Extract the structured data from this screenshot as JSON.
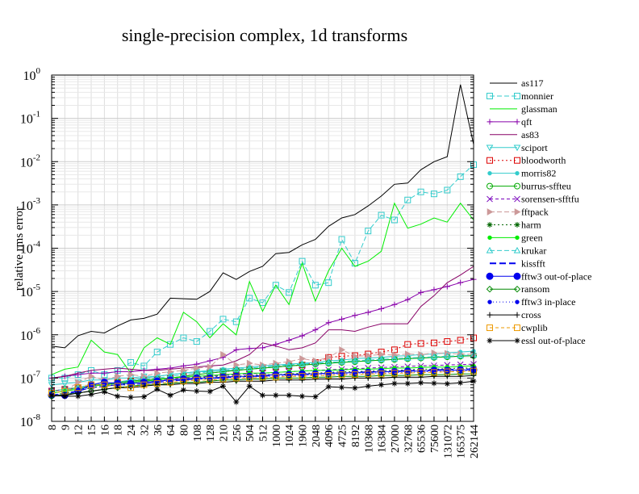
{
  "chart_data": {
    "type": "line",
    "title": "single-precision complex, 1d transforms",
    "xlabel": "",
    "ylabel": "relative rms error",
    "yscale": "log",
    "ylim": [
      1e-08,
      1
    ],
    "grid": true,
    "legend_position": "right",
    "y_ticks": [
      {
        "base": "10",
        "exp": "0"
      },
      {
        "base": "10",
        "exp": "-1"
      },
      {
        "base": "10",
        "exp": "-2"
      },
      {
        "base": "10",
        "exp": "-3"
      },
      {
        "base": "10",
        "exp": "-4"
      },
      {
        "base": "10",
        "exp": "-5"
      },
      {
        "base": "10",
        "exp": "-6"
      },
      {
        "base": "10",
        "exp": "-7"
      },
      {
        "base": "10",
        "exp": "-8"
      }
    ],
    "categories": [
      "8",
      "9",
      "12",
      "15",
      "16",
      "18",
      "24",
      "32",
      "36",
      "64",
      "80",
      "108",
      "128",
      "210",
      "256",
      "504",
      "512",
      "1000",
      "1024",
      "1960",
      "2048",
      "4096",
      "4725",
      "8192",
      "10368",
      "16384",
      "27000",
      "32768",
      "65536",
      "75600",
      "131072",
      "165375",
      "262144"
    ],
    "series": [
      {
        "name": "as117",
        "color": "#000000",
        "dash": "",
        "marker": "none",
        "values": [
          5.5e-07,
          5e-07,
          9.5e-07,
          1.2e-06,
          1.1e-06,
          1.6e-06,
          2.2e-06,
          2.4e-06,
          3e-06,
          7e-06,
          6.8e-06,
          6.6e-06,
          1e-05,
          2.7e-05,
          1.9e-05,
          2.9e-05,
          3.8e-05,
          7.5e-05,
          8e-05,
          0.00012,
          0.00016,
          0.00032,
          0.0005,
          0.0006,
          0.00095,
          0.0016,
          0.003,
          0.0032,
          0.0065,
          0.01,
          0.013,
          0.6,
          0.025
        ]
      },
      {
        "name": "monnier",
        "color": "#33cccc",
        "dash": "6,3",
        "marker": "square",
        "values": [
          1e-07,
          1e-07,
          1.2e-07,
          1.5e-07,
          1.2e-07,
          1.5e-07,
          2.3e-07,
          1.9e-07,
          4e-07,
          6e-07,
          8.5e-07,
          7e-07,
          1.2e-06,
          2.3e-06,
          2e-06,
          7e-06,
          5.5e-06,
          1.4e-05,
          9.5e-06,
          5e-05,
          1.4e-05,
          1.6e-05,
          0.00016,
          4.5e-05,
          0.00025,
          0.00058,
          0.00045,
          0.0013,
          0.002,
          0.0018,
          0.0022,
          0.0045,
          0.0085
        ]
      },
      {
        "name": "glassman",
        "color": "#00ee00",
        "dash": "",
        "marker": "none",
        "values": [
          1.2e-07,
          1.6e-07,
          1.8e-07,
          7.5e-07,
          4e-07,
          3.5e-07,
          1.3e-07,
          5e-07,
          8.5e-07,
          6e-07,
          3.3e-06,
          2e-06,
          8.5e-07,
          1.8e-06,
          1e-06,
          1.7e-05,
          3.5e-06,
          1.4e-05,
          5e-06,
          4.5e-05,
          6e-06,
          3e-05,
          0.0001,
          3.8e-05,
          5e-05,
          8.5e-05,
          0.0011,
          0.00029,
          0.00036,
          0.0005,
          0.0004,
          0.0011,
          0.00045
        ]
      },
      {
        "name": "qft",
        "color": "#8800aa",
        "dash": "",
        "marker": "plus",
        "values": [
          1e-07,
          1.1e-07,
          1.2e-07,
          1.3e-07,
          1.3e-07,
          1.4e-07,
          1.4e-07,
          1.5e-07,
          1.6e-07,
          1.7e-07,
          1.9e-07,
          2.1e-07,
          2.5e-07,
          3e-07,
          4.5e-07,
          4.8e-07,
          5e-07,
          6e-07,
          7.5e-07,
          9.5e-07,
          1.3e-06,
          1.9e-06,
          2.3e-06,
          2.8e-06,
          3.3e-06,
          4e-06,
          5e-06,
          6.5e-06,
          9.5e-06,
          1.1e-05,
          1.3e-05,
          1.6e-05,
          1.9e-05
        ]
      },
      {
        "name": "as83",
        "color": "#880066",
        "dash": "",
        "marker": "none",
        "values": [
          1e-07,
          1.1e-07,
          1.3e-07,
          1.5e-07,
          1.6e-07,
          1.7e-07,
          1.6e-07,
          1.5e-07,
          1.5e-07,
          1.6e-07,
          1.7e-07,
          1.8e-07,
          1.9e-07,
          2e-07,
          2.5e-07,
          3.5e-07,
          6.5e-07,
          5.5e-07,
          4.5e-07,
          5e-07,
          6.5e-07,
          1.3e-06,
          1.3e-06,
          1.2e-06,
          1.5e-06,
          1.8e-06,
          1.8e-06,
          1.8e-06,
          4.5e-06,
          8e-06,
          1.6e-05,
          2.4e-05,
          3.8e-05
        ]
      },
      {
        "name": "sciport",
        "color": "#33cccc",
        "dash": "",
        "marker": "tridown",
        "values": [
          7e-08,
          7.5e-08,
          8e-08,
          9e-08,
          9e-08,
          1e-07,
          1e-07,
          1.1e-07,
          1.1e-07,
          1.2e-07,
          1.3e-07,
          1.4e-07,
          1.4e-07,
          1.5e-07,
          1.5e-07,
          1.6e-07,
          1.7e-07,
          1.8e-07,
          1.9e-07,
          2e-07,
          2.1e-07,
          2.2e-07,
          2.3e-07,
          2.4e-07,
          2.5e-07,
          2.6e-07,
          2.7e-07,
          2.8e-07,
          2.9e-07,
          3e-07,
          3.1e-07,
          3.2e-07,
          3.3e-07
        ]
      },
      {
        "name": "bloodworth",
        "color": "#dd0000",
        "dash": "2,3",
        "marker": "square",
        "values": [
          5e-08,
          5.5e-08,
          6e-08,
          7e-08,
          7e-08,
          8e-08,
          8.5e-08,
          9e-08,
          9.5e-08,
          1e-07,
          1.1e-07,
          1.2e-07,
          1.3e-07,
          1.4e-07,
          1.5e-07,
          1.6e-07,
          1.7e-07,
          1.8e-07,
          1.9e-07,
          2e-07,
          2.3e-07,
          3e-07,
          3.2e-07,
          3.3e-07,
          3.6e-07,
          4e-07,
          4.5e-07,
          6e-07,
          6.3e-07,
          6.5e-07,
          7e-07,
          7.5e-07,
          8.5e-07
        ]
      },
      {
        "name": "morris82",
        "color": "#33cccc",
        "dash": "",
        "marker": "dot",
        "values": [
          4.5e-08,
          5e-08,
          6e-08,
          6.5e-08,
          7e-08,
          8e-08,
          9e-08,
          1e-07,
          1.1e-07,
          1.2e-07,
          1.3e-07,
          1.4e-07,
          1.5e-07,
          1.6e-07,
          1.7e-07,
          1.8e-07,
          1.9e-07,
          2e-07,
          2.1e-07,
          2.2e-07,
          2.3e-07,
          2.5e-07,
          2.6e-07,
          2.8e-07,
          2.9e-07,
          3e-07,
          3.2e-07,
          3.3e-07,
          3.5e-07,
          3.6e-07,
          3.8e-07,
          4e-07,
          4.2e-07
        ]
      },
      {
        "name": "burrus-sffteu",
        "color": "#00aa00",
        "dash": "",
        "marker": "circle",
        "values": [
          5e-08,
          5.5e-08,
          6e-08,
          7e-08,
          7e-08,
          8e-08,
          8.5e-08,
          9e-08,
          9.5e-08,
          1e-07,
          1.1e-07,
          1.2e-07,
          1.3e-07,
          1.4e-07,
          1.5e-07,
          1.6e-07,
          1.7e-07,
          1.8e-07,
          1.9e-07,
          2e-07,
          2.1e-07,
          2.2e-07,
          2.3e-07,
          2.4e-07,
          2.5e-07,
          2.6e-07,
          2.7e-07,
          2.8e-07,
          2.9e-07,
          3e-07,
          3.1e-07,
          3.2e-07,
          3.3e-07
        ]
      },
      {
        "name": "sorensen-sfftfu",
        "color": "#7700bb",
        "dash": "4,3",
        "marker": "x",
        "values": [
          5e-08,
          5.5e-08,
          6e-08,
          6.5e-08,
          7e-08,
          7.5e-08,
          8e-08,
          8.5e-08,
          9e-08,
          9.5e-08,
          1e-07,
          1.05e-07,
          1.1e-07,
          1.15e-07,
          1.2e-07,
          1.25e-07,
          1.3e-07,
          1.35e-07,
          1.4e-07,
          1.45e-07,
          1.5e-07,
          1.55e-07,
          1.6e-07,
          1.65e-07,
          1.7e-07,
          1.75e-07,
          1.8e-07,
          1.85e-07,
          1.9e-07,
          1.95e-07,
          2e-07,
          2.05e-07,
          2.1e-07
        ]
      },
      {
        "name": "fftpack",
        "color": "#cc9999",
        "dash": "6,3",
        "marker": "triright",
        "values": [
          4.5e-08,
          5e-08,
          8e-08,
          1.1e-07,
          9e-08,
          1.1e-07,
          1.2e-07,
          1.1e-07,
          1.3e-07,
          1.4e-07,
          1.5e-07,
          1.7e-07,
          1.8e-07,
          3.5e-07,
          2e-07,
          2.2e-07,
          2e-07,
          2.2e-07,
          2.4e-07,
          2.8e-07,
          2.5e-07,
          3e-07,
          4.5e-07,
          3.2e-07,
          3.3e-07,
          3.5e-07,
          3.4e-07,
          3.6e-07,
          3.5e-07,
          3.8e-07,
          3.7e-07,
          3.6e-07,
          3.5e-07
        ]
      },
      {
        "name": "harm",
        "color": "#006600",
        "dash": "2,3",
        "marker": "asterisk",
        "values": [
          4e-08,
          4.5e-08,
          5e-08,
          6e-08,
          6.5e-08,
          7e-08,
          7.5e-08,
          8e-08,
          8.5e-08,
          9e-08,
          9.5e-08,
          1e-07,
          1.05e-07,
          1.1e-07,
          1.1e-07,
          1.15e-07,
          1.2e-07,
          1.2e-07,
          1.25e-07,
          1.3e-07,
          1.3e-07,
          1.35e-07,
          1.4e-07,
          1.4e-07,
          1.45e-07,
          1.5e-07,
          1.5e-07,
          1.55e-07,
          1.6e-07,
          1.6e-07,
          1.65e-07,
          1.7e-07,
          1.7e-07
        ]
      },
      {
        "name": "green",
        "color": "#00ee00",
        "dash": "",
        "marker": "dot",
        "values": [
          4.5e-08,
          5e-08,
          5.5e-08,
          6.5e-08,
          7e-08,
          7.5e-08,
          8e-08,
          8.5e-08,
          9e-08,
          1e-07,
          1.05e-07,
          1.1e-07,
          1.15e-07,
          1.2e-07,
          1.25e-07,
          1.3e-07,
          1.3e-07,
          1.35e-07,
          1.4e-07,
          1.45e-07,
          1.5e-07,
          1.5e-07,
          1.55e-07,
          1.6e-07,
          1.6e-07,
          1.65e-07,
          1.7e-07,
          1.7e-07,
          1.75e-07,
          1.8e-07,
          1.8e-07,
          1.85e-07,
          1.9e-07
        ]
      },
      {
        "name": "krukar",
        "color": "#33cccc",
        "dash": "6,3",
        "marker": "triup",
        "values": [
          5e-08,
          5.5e-08,
          6e-08,
          7e-08,
          7.5e-08,
          8e-08,
          9e-08,
          9.5e-08,
          1e-07,
          1.1e-07,
          1.2e-07,
          1.3e-07,
          1.4e-07,
          1.5e-07,
          1.6e-07,
          1.7e-07,
          1.8e-07,
          1.9e-07,
          2e-07,
          2.1e-07,
          2.2e-07,
          2.3e-07,
          2.4e-07,
          2.5e-07,
          2.6e-07,
          2.7e-07,
          2.8e-07,
          2.9e-07,
          3e-07,
          3.1e-07,
          3.2e-07,
          3.3e-07,
          3.4e-07
        ]
      },
      {
        "name": "kissfft",
        "color": "#0000ee",
        "dash": "8,4",
        "marker": "none",
        "values": [
          4e-08,
          4.5e-08,
          5e-08,
          6e-08,
          6.5e-08,
          7e-08,
          7e-08,
          7.5e-08,
          8e-08,
          8.5e-08,
          9e-08,
          9.5e-08,
          1e-07,
          1e-07,
          1.05e-07,
          1.1e-07,
          1.1e-07,
          1.15e-07,
          1.2e-07,
          1.2e-07,
          1.25e-07,
          1.3e-07,
          1.3e-07,
          1.35e-07,
          1.4e-07,
          1.4e-07,
          1.45e-07,
          1.5e-07,
          1.5e-07,
          1.55e-07,
          1.6e-07,
          1.6e-07,
          1.65e-07
        ]
      },
      {
        "name": "fftw3 out-of-place",
        "color": "#0000ee",
        "dash": "",
        "marker": "bigdot",
        "values": [
          4e-08,
          4e-08,
          5e-08,
          7e-08,
          8e-08,
          7.5e-08,
          7.5e-08,
          8e-08,
          8.5e-08,
          9e-08,
          9.5e-08,
          1e-07,
          1e-07,
          1.05e-07,
          1.1e-07,
          1.1e-07,
          1.15e-07,
          1.2e-07,
          1.2e-07,
          1.25e-07,
          1.25e-07,
          1.3e-07,
          1.3e-07,
          1.35e-07,
          1.35e-07,
          1.4e-07,
          1.4e-07,
          1.45e-07,
          1.45e-07,
          1.5e-07,
          1.5e-07,
          1.55e-07,
          1.55e-07
        ]
      },
      {
        "name": "ransom",
        "color": "#008800",
        "dash": "",
        "marker": "diamond",
        "values": [
          3.8e-08,
          4.2e-08,
          4.5e-08,
          5e-08,
          5.5e-08,
          6e-08,
          6.5e-08,
          7e-08,
          7e-08,
          7.5e-08,
          8e-08,
          8e-08,
          8.5e-08,
          9e-08,
          9e-08,
          9.5e-08,
          9.5e-08,
          1e-07,
          1e-07,
          1e-07,
          1.05e-07,
          1.05e-07,
          1.1e-07,
          1.1e-07,
          1.1e-07,
          1.15e-07,
          1.15e-07,
          1.15e-07,
          1.2e-07,
          1.2e-07,
          1.2e-07,
          1.25e-07,
          1.25e-07
        ]
      },
      {
        "name": "fftw3 in-place",
        "color": "#0000ee",
        "dash": "1,3",
        "marker": "dot",
        "values": [
          4e-08,
          4.2e-08,
          5e-08,
          6.5e-08,
          7.5e-08,
          7e-08,
          7e-08,
          7.5e-08,
          8e-08,
          8.5e-08,
          9e-08,
          9.5e-08,
          9.5e-08,
          1e-07,
          1.05e-07,
          1.05e-07,
          1.1e-07,
          1.1e-07,
          1.15e-07,
          1.15e-07,
          1.2e-07,
          1.2e-07,
          1.25e-07,
          1.25e-07,
          1.3e-07,
          1.3e-07,
          1.35e-07,
          1.35e-07,
          1.4e-07,
          1.4e-07,
          1.45e-07,
          1.45e-07,
          1.5e-07
        ]
      },
      {
        "name": "cross",
        "color": "#000000",
        "dash": "",
        "marker": "plus",
        "values": [
          3.8e-08,
          4e-08,
          4.5e-08,
          5e-08,
          5.5e-08,
          6e-08,
          6e-08,
          6.5e-08,
          7e-08,
          7e-08,
          7.5e-08,
          7.5e-08,
          8e-08,
          8e-08,
          8.5e-08,
          8.5e-08,
          8.5e-08,
          9e-08,
          9e-08,
          9e-08,
          9.5e-08,
          9.5e-08,
          9.5e-08,
          1e-07,
          1e-07,
          1e-07,
          1.05e-07,
          1.05e-07,
          1.05e-07,
          1.1e-07,
          1.1e-07,
          1.1e-07,
          1.15e-07
        ]
      },
      {
        "name": "cwplib",
        "color": "#ee9900",
        "dash": "4,3",
        "marker": "square",
        "values": [
          4.5e-08,
          5e-08,
          6e-08,
          7e-08,
          7e-08,
          6.5e-08,
          6e-08,
          7e-08,
          7.5e-08,
          8e-08,
          8.5e-08,
          9e-08,
          9e-08,
          9.5e-08,
          1e-07,
          1e-07,
          1.05e-07,
          1.05e-07,
          1.1e-07,
          1.1e-07,
          1.15e-07,
          1.15e-07,
          1.2e-07,
          1.2e-07,
          1.25e-07,
          1.25e-07,
          1.3e-07,
          1.3e-07,
          1.35e-07,
          1.35e-07,
          1.4e-07,
          1.4e-07,
          1.45e-07
        ]
      },
      {
        "name": "essl out-of-place",
        "color": "#000000",
        "dash": "",
        "marker": "asterisk",
        "values": [
          4e-08,
          3.8e-08,
          3.8e-08,
          4.2e-08,
          4.8e-08,
          3.8e-08,
          3.6e-08,
          3.7e-08,
          5.5e-08,
          4e-08,
          5.3e-08,
          5e-08,
          4.9e-08,
          6.5e-08,
          2.8e-08,
          6.5e-08,
          4e-08,
          4e-08,
          4e-08,
          3.8e-08,
          3.7e-08,
          6.3e-08,
          6.1e-08,
          5.9e-08,
          6.5e-08,
          7e-08,
          7.5e-08,
          7.5e-08,
          7.8e-08,
          7.6e-08,
          7.4e-08,
          7.8e-08,
          8.5e-08
        ]
      }
    ]
  }
}
